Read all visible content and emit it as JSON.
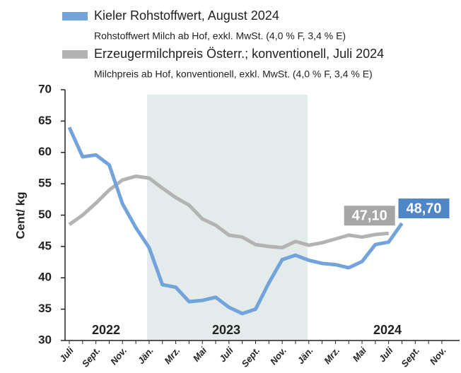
{
  "chart_data": {
    "type": "line",
    "y_label": "Cent/ kg",
    "categories": [
      "Juli",
      null,
      "Sept.",
      null,
      "Nov.",
      null,
      "Jän.",
      null,
      "Mrz.",
      null,
      "Mai",
      null,
      "Juli",
      null,
      "Sept.",
      null,
      "Nov.",
      null,
      "Jän.",
      null,
      "Mrz.",
      null,
      "Mai",
      null,
      "Juli",
      null,
      "Sept.",
      null,
      "Nov."
    ],
    "years": [
      "2022",
      "2023",
      "2024"
    ],
    "series": [
      {
        "name": "Kieler Rohstoffwert, August 2024",
        "description": "Rohstoffwert Milch ab Hof, exkl. MwSt. (4,0 % F, 3,4 % E)",
        "color": "#72a3da",
        "label_color": "#4f86c6",
        "values": [
          64.0,
          59.3,
          59.6,
          58.0,
          51.8,
          48.0,
          44.8,
          38.9,
          38.5,
          36.2,
          36.4,
          36.9,
          35.3,
          34.3,
          35.0,
          39.2,
          42.9,
          43.6,
          42.8,
          42.3,
          42.1,
          41.6,
          42.6,
          45.3,
          45.7,
          48.7,
          null,
          null,
          null
        ],
        "value_labels": [
          null,
          null,
          null,
          null,
          null,
          null,
          null,
          null,
          null,
          null,
          null,
          null,
          null,
          null,
          null,
          null,
          null,
          null,
          null,
          null,
          null,
          null,
          null,
          null,
          null,
          "48,70",
          null,
          null,
          null
        ]
      },
      {
        "name": "Erzeugermilchpreis Österr.; konventionell, Juli 2024",
        "description": "Milchpreis ab Hof, konventionell, exkl. MwSt. (4,0 % F, 3,4 % E)",
        "color": "#b3b3b3",
        "label_color": "#a6a6a6",
        "values": [
          48.5,
          50.0,
          51.9,
          54.0,
          55.6,
          56.2,
          55.9,
          54.3,
          52.8,
          51.6,
          49.4,
          48.4,
          46.8,
          46.5,
          45.3,
          45.0,
          44.8,
          45.8,
          45.2,
          45.6,
          46.2,
          46.8,
          46.5,
          46.9,
          47.1,
          null,
          null,
          null,
          null
        ],
        "value_labels": [
          null,
          null,
          null,
          null,
          null,
          null,
          null,
          null,
          null,
          null,
          null,
          null,
          null,
          null,
          null,
          null,
          null,
          null,
          null,
          null,
          null,
          null,
          null,
          null,
          "47,10",
          null,
          null,
          null,
          null
        ]
      }
    ],
    "ylim": [
      30,
      70
    ],
    "yticks": [
      30,
      35,
      40,
      45,
      50,
      55,
      60,
      65,
      70
    ]
  }
}
